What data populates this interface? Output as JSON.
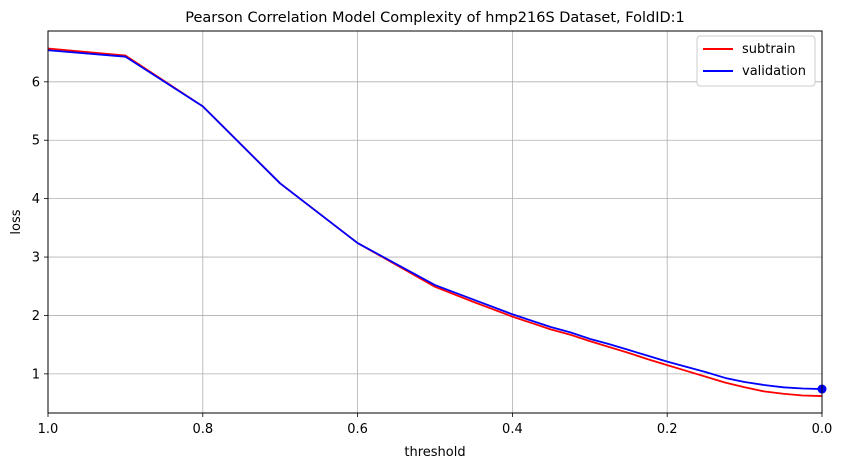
{
  "chart_data": {
    "type": "line",
    "title": "Pearson Correlation Model Complexity of hmp216S Dataset, FoldID:1",
    "xlabel": "threshold",
    "ylabel": "loss",
    "xlim": [
      1.0,
      0.0
    ],
    "ylim": [
      0.33,
      6.87
    ],
    "x_reversed": true,
    "grid": true,
    "legend_position": "top-right",
    "x_ticks": [
      "1.0",
      "0.8",
      "0.6",
      "0.4",
      "0.2",
      "0.0"
    ],
    "x_tick_values": [
      1.0,
      0.8,
      0.6,
      0.4,
      0.2,
      0.0
    ],
    "y_ticks": [
      "1",
      "2",
      "3",
      "4",
      "5",
      "6"
    ],
    "y_tick_values": [
      1,
      2,
      3,
      4,
      5,
      6
    ],
    "series": [
      {
        "name": "subtrain",
        "color": "#ff0000",
        "x": [
          1.0,
          0.9,
          0.8,
          0.7,
          0.6,
          0.5,
          0.45,
          0.4,
          0.375,
          0.35,
          0.325,
          0.3,
          0.275,
          0.25,
          0.225,
          0.2,
          0.175,
          0.15,
          0.125,
          0.1,
          0.075,
          0.05,
          0.025,
          0.0
        ],
        "values": [
          6.57,
          6.45,
          5.58,
          4.26,
          3.24,
          2.49,
          2.23,
          1.98,
          1.87,
          1.76,
          1.67,
          1.56,
          1.46,
          1.36,
          1.25,
          1.15,
          1.05,
          0.95,
          0.85,
          0.77,
          0.7,
          0.66,
          0.63,
          0.62
        ]
      },
      {
        "name": "validation",
        "color": "#0000ff",
        "x": [
          1.0,
          0.9,
          0.8,
          0.7,
          0.6,
          0.5,
          0.45,
          0.4,
          0.375,
          0.35,
          0.325,
          0.3,
          0.275,
          0.25,
          0.225,
          0.2,
          0.175,
          0.15,
          0.125,
          0.1,
          0.075,
          0.05,
          0.025,
          0.0
        ],
        "values": [
          6.54,
          6.43,
          5.58,
          4.26,
          3.24,
          2.52,
          2.27,
          2.02,
          1.91,
          1.8,
          1.71,
          1.6,
          1.51,
          1.41,
          1.31,
          1.21,
          1.12,
          1.03,
          0.93,
          0.86,
          0.81,
          0.77,
          0.75,
          0.74
        ]
      }
    ],
    "marker": {
      "x": 0.0,
      "y": 0.74,
      "color": "#0000ff"
    }
  }
}
